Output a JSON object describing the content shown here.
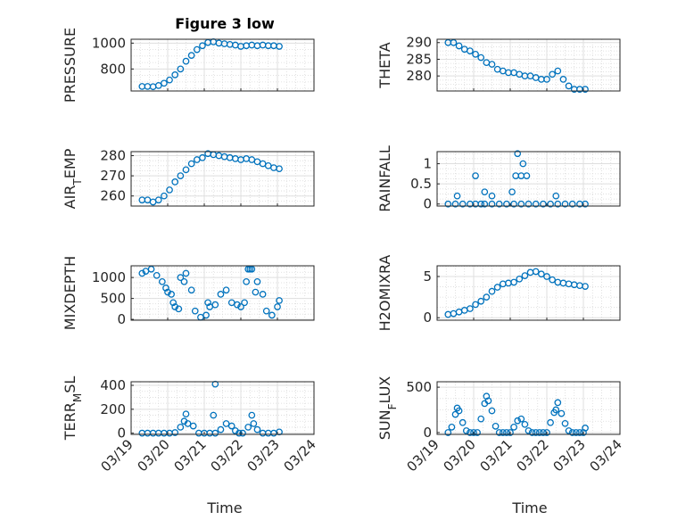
{
  "figure": {
    "title": "Figure 3 low",
    "xlabel": "Time",
    "xtick_labels": [
      "03/19",
      "03/20",
      "03/21",
      "03/22",
      "03/23",
      "03/24"
    ]
  },
  "chart_data": [
    {
      "type": "scatter",
      "title": "Figure 3 low",
      "ylabel": "PRESSURE",
      "ylim": [
        630,
        1030
      ],
      "yticks": [
        800,
        1000
      ],
      "color": "#0072BD",
      "x": [
        0.3,
        0.45,
        0.6,
        0.75,
        0.9,
        1.05,
        1.2,
        1.35,
        1.5,
        1.65,
        1.8,
        1.95,
        2.1,
        2.25,
        2.4,
        2.55,
        2.7,
        2.85,
        3.0,
        3.15,
        3.3,
        3.45,
        3.6,
        3.75,
        3.9,
        4.05
      ],
      "y": [
        665,
        665,
        663,
        672,
        690,
        715,
        755,
        800,
        860,
        905,
        950,
        980,
        1005,
        1010,
        1000,
        995,
        990,
        985,
        975,
        980,
        985,
        980,
        985,
        980,
        980,
        975
      ]
    },
    {
      "type": "scatter",
      "ylabel": "THETA",
      "ylim": [
        275.5,
        291
      ],
      "yticks": [
        280,
        285,
        290
      ],
      "color": "#0072BD",
      "x": [
        0.3,
        0.45,
        0.6,
        0.75,
        0.9,
        1.05,
        1.2,
        1.35,
        1.5,
        1.65,
        1.8,
        1.95,
        2.1,
        2.25,
        2.4,
        2.55,
        2.7,
        2.85,
        3.0,
        3.15,
        3.3,
        3.45,
        3.6,
        3.75,
        3.9,
        4.05
      ],
      "y": [
        290,
        290,
        289,
        288,
        287.5,
        286.5,
        285.5,
        284,
        283.5,
        282,
        281.5,
        281,
        281,
        280.5,
        280,
        280,
        279.5,
        279,
        279,
        280.5,
        281.5,
        279,
        277,
        276,
        276,
        276
      ]
    },
    {
      "type": "scatter",
      "ylabel": "AIR_TEMP",
      "ylim": [
        255,
        282
      ],
      "yticks": [
        260,
        270,
        280
      ],
      "color": "#0072BD",
      "x": [
        0.3,
        0.45,
        0.6,
        0.75,
        0.9,
        1.05,
        1.2,
        1.35,
        1.5,
        1.65,
        1.8,
        1.95,
        2.1,
        2.25,
        2.4,
        2.55,
        2.7,
        2.85,
        3.0,
        3.15,
        3.3,
        3.45,
        3.6,
        3.75,
        3.9,
        4.05
      ],
      "y": [
        258,
        258,
        257,
        258,
        260,
        263,
        267,
        270,
        273,
        276,
        278,
        279,
        281,
        280.5,
        280,
        279.5,
        279,
        278.5,
        278,
        278.5,
        278,
        277,
        276,
        275,
        274,
        273.5
      ]
    },
    {
      "type": "scatter",
      "ylabel": "RAINFALL",
      "ylim": [
        -0.05,
        1.3
      ],
      "yticks": [
        0,
        0.5,
        1
      ],
      "color": "#0072BD",
      "x": [
        0.3,
        0.5,
        0.7,
        0.9,
        1.05,
        1.2,
        1.3,
        1.5,
        1.7,
        1.9,
        2.1,
        2.3,
        2.5,
        2.7,
        2.9,
        3.1,
        3.3,
        3.5,
        3.7,
        3.9,
        4.05,
        0.55,
        1.05,
        1.3,
        1.5,
        2.05,
        2.15,
        2.2,
        2.3,
        2.35,
        2.45,
        3.25
      ],
      "y": [
        0,
        0,
        0,
        0,
        0,
        0,
        0,
        0,
        0,
        0,
        0,
        0,
        0,
        0,
        0,
        0,
        0,
        0,
        0,
        0,
        0,
        0.2,
        0.7,
        0.3,
        0.2,
        0.3,
        0.7,
        1.25,
        0.7,
        1.0,
        0.7,
        0.2
      ]
    },
    {
      "type": "scatter",
      "ylabel": "MIXDEPTH",
      "ylim": [
        -20,
        1280
      ],
      "yticks": [
        0,
        500,
        1000
      ],
      "color": "#0072BD",
      "x": [
        0.3,
        0.4,
        0.55,
        0.7,
        0.85,
        0.95,
        1.1,
        1.2,
        1.35,
        1.5,
        1.65,
        1.75,
        1.9,
        2.05,
        2.15,
        2.3,
        2.45,
        2.6,
        2.75,
        2.9,
        3.0,
        3.1,
        3.2,
        3.3,
        3.45,
        3.6,
        3.7,
        3.85,
        4.0,
        4.05,
        1.0,
        1.15,
        1.3,
        1.45,
        2.1,
        3.15,
        3.25,
        3.4
      ],
      "y": [
        1100,
        1150,
        1200,
        1050,
        900,
        750,
        600,
        300,
        1000,
        1100,
        700,
        200,
        50,
        100,
        300,
        350,
        600,
        700,
        400,
        350,
        300,
        400,
        1200,
        1200,
        900,
        600,
        200,
        100,
        300,
        450,
        650,
        400,
        250,
        900,
        400,
        900,
        1200,
        650
      ]
    },
    {
      "type": "scatter",
      "ylabel": "H2OMIXRA",
      "ylim": [
        -0.3,
        6.3
      ],
      "yticks": [
        0,
        5
      ],
      "color": "#0072BD",
      "x": [
        0.3,
        0.45,
        0.6,
        0.75,
        0.9,
        1.05,
        1.2,
        1.35,
        1.5,
        1.65,
        1.8,
        1.95,
        2.1,
        2.25,
        2.4,
        2.55,
        2.7,
        2.85,
        3.0,
        3.15,
        3.3,
        3.45,
        3.6,
        3.75,
        3.9,
        4.05
      ],
      "y": [
        0.4,
        0.5,
        0.7,
        0.9,
        1.1,
        1.6,
        2.0,
        2.5,
        3.2,
        3.7,
        4.1,
        4.2,
        4.3,
        4.7,
        5.1,
        5.5,
        5.6,
        5.3,
        5.0,
        4.6,
        4.3,
        4.2,
        4.1,
        4.0,
        3.9,
        3.8
      ]
    },
    {
      "type": "scatter",
      "ylabel": "TERR_MSL",
      "ylim": [
        -10,
        430
      ],
      "yticks": [
        0,
        200,
        400
      ],
      "color": "#0072BD",
      "x": [
        0.3,
        0.45,
        0.6,
        0.75,
        0.9,
        1.05,
        1.2,
        1.35,
        1.45,
        1.55,
        1.7,
        1.85,
        2.0,
        2.15,
        2.3,
        2.45,
        2.6,
        2.75,
        2.85,
        2.95,
        3.05,
        3.2,
        3.35,
        3.45,
        3.6,
        3.75,
        3.9,
        4.05,
        1.5,
        2.25,
        2.3,
        3.3
      ],
      "y": [
        0,
        0,
        0,
        0,
        0,
        0,
        5,
        50,
        100,
        80,
        60,
        0,
        0,
        0,
        0,
        30,
        80,
        60,
        20,
        0,
        0,
        50,
        80,
        30,
        0,
        0,
        0,
        10,
        160,
        150,
        410,
        150
      ]
    },
    {
      "type": "scatter",
      "ylabel": "SUN_FLUX",
      "ylim": [
        -20,
        560
      ],
      "yticks": [
        0,
        500
      ],
      "color": "#0072BD",
      "x": [
        0.3,
        0.4,
        0.5,
        0.55,
        0.6,
        0.7,
        0.8,
        0.9,
        1.0,
        1.1,
        1.2,
        1.3,
        1.35,
        1.4,
        1.5,
        1.6,
        1.7,
        1.8,
        1.9,
        2.0,
        2.1,
        2.2,
        2.3,
        2.4,
        2.5,
        2.6,
        2.7,
        2.8,
        2.9,
        3.0,
        3.1,
        3.2,
        3.25,
        3.3,
        3.4,
        3.5,
        3.6,
        3.7,
        3.8,
        3.9,
        4.0,
        4.05
      ],
      "y": [
        0,
        60,
        200,
        270,
        240,
        110,
        20,
        0,
        0,
        0,
        150,
        320,
        400,
        350,
        240,
        70,
        0,
        0,
        0,
        0,
        60,
        130,
        150,
        90,
        20,
        0,
        0,
        0,
        0,
        0,
        110,
        220,
        250,
        330,
        210,
        100,
        20,
        0,
        0,
        0,
        0,
        50
      ]
    }
  ]
}
